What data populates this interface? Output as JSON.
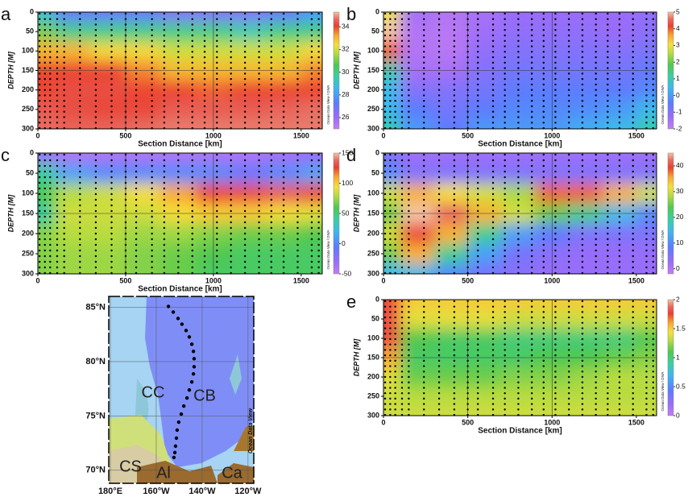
{
  "chart_data": [
    {
      "type": "contour",
      "label": "a",
      "xlabel": "Section Distance [km]",
      "ylabel": "DEPTH [M]",
      "watermark": "Ocean Data View / DIVA",
      "xlim": [
        0,
        1620
      ],
      "ylim": [
        300,
        0
      ],
      "xticks": [
        0,
        500,
        1000,
        1500
      ],
      "yticks": [
        0,
        50,
        100,
        150,
        200,
        250,
        300
      ],
      "gridlines": {
        "x": [
          500,
          1000
        ],
        "y": [
          150
        ]
      },
      "distances": [
        0,
        200,
        400,
        600,
        800,
        1000,
        1200,
        1400,
        1600
      ],
      "depths": [
        0,
        50,
        100,
        150,
        200,
        250,
        300
      ],
      "values": [
        [
          29,
          27,
          27,
          27,
          26.5,
          26.5,
          26.5,
          27,
          28
        ],
        [
          31,
          30,
          30,
          30,
          30,
          30,
          29.5,
          30,
          30
        ],
        [
          33,
          33,
          32.5,
          32.5,
          32,
          32,
          32,
          32,
          32.5
        ],
        [
          34,
          34,
          34,
          33.5,
          33,
          33,
          33,
          33,
          33.5
        ],
        [
          34,
          34.3,
          34.3,
          34,
          34,
          33.8,
          34,
          34,
          34
        ],
        [
          34.5,
          34.3,
          34.2,
          34.2,
          34.5,
          34.5,
          34.5,
          34.6,
          34.7
        ],
        [
          34.7,
          34.6,
          34.6,
          34.7,
          34.8,
          34.8,
          34.8,
          34.8,
          34.8
        ]
      ],
      "clim": [
        25,
        35.3
      ],
      "cticks": [
        26,
        28,
        30,
        32,
        34
      ],
      "stations": [
        10,
        40,
        70,
        110,
        150,
        240,
        330,
        420,
        500,
        560,
        650,
        720,
        800,
        880,
        950,
        1020,
        1100,
        1180,
        1260,
        1330,
        1400,
        1480,
        1560,
        1600
      ]
    },
    {
      "type": "contour",
      "label": "b",
      "xlabel": "Section Distance [km]",
      "ylabel": "DEPTH [M]",
      "watermark": "Ocean Data View / DIVA",
      "xlim": [
        0,
        1620
      ],
      "ylim": [
        300,
        0
      ],
      "xticks": [
        0,
        500,
        1000,
        1500
      ],
      "yticks": [
        0,
        50,
        100,
        150,
        200,
        250,
        300
      ],
      "gridlines": {
        "x": [
          500,
          1000
        ],
        "y": [
          150
        ]
      },
      "distances": [
        0,
        200,
        400,
        600,
        800,
        1000,
        1200,
        1400,
        1600
      ],
      "depths": [
        0,
        50,
        100,
        150,
        200,
        250,
        300
      ],
      "values": [
        [
          3,
          -1.5,
          -1.7,
          -1.5,
          -1.3,
          -1.3,
          -1.3,
          -1.3,
          -1.2
        ],
        [
          5,
          -1.7,
          -1.8,
          -1.4,
          -1.2,
          -1.2,
          -1.2,
          -1.3,
          -1.1
        ],
        [
          4,
          -1.7,
          -1.8,
          -1.2,
          -1,
          -1,
          -1,
          -1,
          -0.9
        ],
        [
          1,
          -1.5,
          -1.5,
          -1,
          -0.8,
          -0.8,
          -0.8,
          -0.8,
          -0.6
        ],
        [
          0.5,
          -1,
          -1,
          -0.8,
          -0.5,
          -0.5,
          -0.5,
          -0.5,
          -0.3
        ],
        [
          0.5,
          -0.5,
          -0.8,
          -0.5,
          -0.3,
          -0.3,
          -0.2,
          0,
          0.5
        ],
        [
          1,
          0,
          -0.5,
          0,
          0,
          0,
          0.3,
          0.5,
          1
        ]
      ],
      "clim": [
        -2,
        5
      ],
      "cticks": [
        -2,
        -1,
        0,
        1,
        2,
        3,
        4,
        5
      ],
      "stations": [
        10,
        40,
        70,
        110,
        150,
        240,
        330,
        420,
        500,
        560,
        650,
        720,
        800,
        880,
        950,
        1020,
        1100,
        1180,
        1260,
        1330,
        1400,
        1480,
        1560,
        1600
      ]
    },
    {
      "type": "contour",
      "label": "c",
      "xlabel": "Section Distance [km]",
      "ylabel": "DEPTH [M]",
      "watermark": "Ocean Data View / DIVA",
      "xlim": [
        0,
        1620
      ],
      "ylim": [
        300,
        0
      ],
      "xticks": [
        0,
        500,
        1000,
        1500
      ],
      "yticks": [
        0,
        50,
        100,
        150,
        200,
        250,
        300
      ],
      "gridlines": {
        "x": [
          500,
          1000
        ],
        "y": [
          150
        ]
      },
      "distances": [
        0,
        200,
        400,
        600,
        800,
        1000,
        1200,
        1400,
        1600
      ],
      "depths": [
        0,
        50,
        100,
        150,
        200,
        250,
        300
      ],
      "values": [
        [
          -30,
          -40,
          -40,
          -40,
          -40,
          -40,
          -40,
          -35,
          -30
        ],
        [
          40,
          10,
          0,
          0,
          0,
          0,
          -10,
          0,
          10
        ],
        [
          60,
          80,
          85,
          95,
          110,
          125,
          130,
          135,
          130
        ],
        [
          40,
          85,
          85,
          85,
          95,
          100,
          100,
          95,
          90
        ],
        [
          70,
          80,
          80,
          75,
          75,
          70,
          65,
          65,
          60
        ],
        [
          70,
          75,
          75,
          70,
          65,
          60,
          55,
          55,
          55
        ],
        [
          70,
          75,
          75,
          70,
          65,
          55,
          55,
          55,
          55
        ]
      ],
      "clim": [
        -50,
        150
      ],
      "cticks": [
        -50,
        0,
        50,
        100,
        150
      ],
      "stations": [
        10,
        40,
        70,
        110,
        150,
        240,
        330,
        420,
        500,
        560,
        650,
        720,
        800,
        880,
        950,
        1020,
        1100,
        1180,
        1260,
        1330,
        1400,
        1480,
        1560,
        1600
      ]
    },
    {
      "type": "contour",
      "label": "d",
      "ylabel": "DEPTH [M]",
      "watermark": "Ocean Data View / DIVA",
      "xlim": [
        0,
        1620
      ],
      "ylim": [
        300,
        0
      ],
      "xticks": [
        0,
        500,
        1000,
        1500
      ],
      "yticks": [
        0,
        50,
        100,
        150,
        200,
        250,
        300
      ],
      "gridlines": {
        "x": [
          500,
          1000
        ],
        "y": [
          150
        ]
      },
      "distances": [
        0,
        200,
        400,
        600,
        800,
        1000,
        1200,
        1400,
        1600
      ],
      "depths": [
        0,
        50,
        100,
        150,
        200,
        250,
        300
      ],
      "values": [
        [
          5,
          2,
          2,
          2,
          2,
          2,
          2,
          2,
          2
        ],
        [
          10,
          5,
          5,
          5,
          5,
          5,
          5,
          5,
          5
        ],
        [
          30,
          35,
          32,
          30,
          28,
          38,
          38,
          35,
          30
        ],
        [
          25,
          45,
          42,
          35,
          30,
          25,
          20,
          15,
          10
        ],
        [
          30,
          40,
          35,
          20,
          12,
          8,
          5,
          5,
          5
        ],
        [
          25,
          35,
          20,
          12,
          6,
          4,
          3,
          3,
          3
        ],
        [
          15,
          15,
          10,
          6,
          4,
          3,
          3,
          3,
          3
        ]
      ],
      "clim": [
        -2,
        45
      ],
      "cticks": [
        0,
        10,
        20,
        30,
        40
      ],
      "stations": [
        10,
        40,
        70,
        110,
        150,
        240,
        330,
        420,
        500,
        560,
        650,
        720,
        800,
        880,
        950,
        1020,
        1100,
        1180,
        1260,
        1330,
        1400,
        1480,
        1560,
        1600
      ]
    },
    {
      "type": "contour",
      "label": "e",
      "xlabel": "Section Distance [km]",
      "ylabel": "DEPTH [M]",
      "watermark": "Ocean Data View / DIVA",
      "xlim": [
        0,
        1620
      ],
      "ylim": [
        300,
        0
      ],
      "xticks": [
        0,
        500,
        1000,
        1500
      ],
      "yticks": [
        0,
        50,
        100,
        150,
        200,
        250,
        300
      ],
      "gridlines": {
        "x": [
          500,
          1000
        ],
        "y": [
          150
        ]
      },
      "distances": [
        0,
        200,
        400,
        600,
        800,
        1000,
        1200,
        1400,
        1600
      ],
      "depths": [
        0,
        50,
        100,
        150,
        200,
        250,
        300
      ],
      "values": [
        [
          1.8,
          1.5,
          1.5,
          1.5,
          1.5,
          1.5,
          1.5,
          1.5,
          1.5
        ],
        [
          1.8,
          1.4,
          1.4,
          1.4,
          1.35,
          1.35,
          1.35,
          1.35,
          1.35
        ],
        [
          1.8,
          1.1,
          1.05,
          1.05,
          1,
          1,
          1,
          1,
          1.1
        ],
        [
          1.6,
          1.05,
          1.05,
          1.05,
          1.05,
          1.1,
          1.1,
          1.15,
          1.2
        ],
        [
          1.4,
          1.15,
          1.15,
          1.15,
          1.2,
          1.2,
          1.25,
          1.3,
          1.3
        ],
        [
          1.35,
          1.3,
          1.3,
          1.3,
          1.3,
          1.3,
          1.3,
          1.3,
          1.3
        ],
        [
          1.35,
          1.35,
          1.35,
          1.35,
          1.35,
          1.35,
          1.35,
          1.35,
          1.35
        ]
      ],
      "clim": [
        0,
        2
      ],
      "cticks": [
        0,
        0.5,
        1,
        1.5,
        2
      ],
      "stations": [
        10,
        40,
        70,
        110,
        150,
        240,
        330,
        420,
        500,
        560,
        650,
        720,
        800,
        880,
        950,
        1020,
        1100,
        1180,
        1260,
        1330,
        1400,
        1480,
        1560,
        1600
      ]
    },
    {
      "type": "map",
      "watermark": "Ocean Data View",
      "xlim": [
        179.3,
        242.5
      ],
      "ylim": [
        68.8,
        86
      ],
      "xticks": [
        {
          "value": 180,
          "label": "180°E"
        },
        {
          "value": 200,
          "label": "160°W"
        },
        {
          "value": 220,
          "label": "140°W"
        },
        {
          "value": 240,
          "label": "120°W"
        }
      ],
      "yticks": [
        {
          "value": 70,
          "label": "70°N"
        },
        {
          "value": 75,
          "label": "75°N"
        },
        {
          "value": 80,
          "label": "80°N"
        },
        {
          "value": 85,
          "label": "85°N"
        }
      ],
      "regions": [
        "CC",
        "CB",
        "CS",
        "Al",
        "Ca"
      ],
      "lon": [
        205.3,
        207.4,
        209.5,
        211.2,
        213.0,
        214.4,
        215.5,
        216.2,
        216.5,
        216.5,
        216.2,
        215.5,
        214.4,
        213.4,
        212.0,
        210.9,
        209.8,
        209.1,
        208.8,
        208.4,
        208.1,
        207.7
      ],
      "lat": [
        85.08,
        84.56,
        83.97,
        83.45,
        82.86,
        82.27,
        81.6,
        80.94,
        80.27,
        79.53,
        78.87,
        78.13,
        77.39,
        76.65,
        75.91,
        75.17,
        74.43,
        73.7,
        72.96,
        72.22,
        71.63,
        71.18
      ]
    }
  ]
}
